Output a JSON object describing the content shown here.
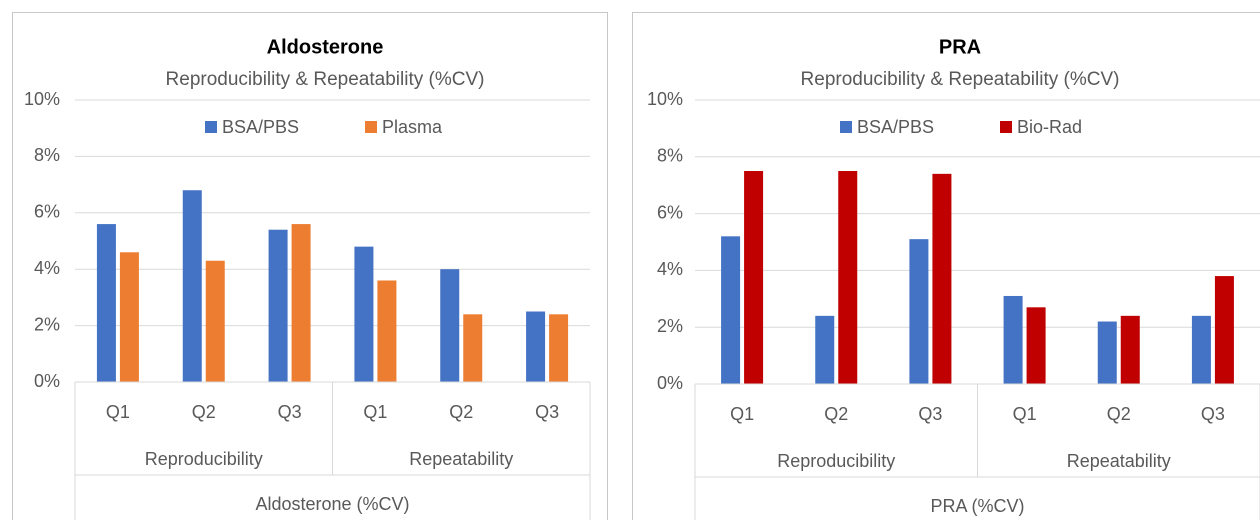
{
  "chart_data": [
    {
      "type": "bar",
      "title": "Aldosterone",
      "subtitle": "Reproducibility & Repeatability (%CV)",
      "categories": [
        "Q1",
        "Q2",
        "Q3",
        "Q1",
        "Q2",
        "Q3"
      ],
      "groups": [
        "Reproducibility",
        "Repeatability"
      ],
      "x_label": "Aldosterone (%CV)",
      "series": [
        {
          "name": "BSA/PBS",
          "color": "#4472c4",
          "values": [
            5.6,
            6.8,
            5.4,
            4.8,
            4.0,
            2.5
          ]
        },
        {
          "name": "Plasma",
          "color": "#ed7d31",
          "values": [
            4.6,
            4.3,
            5.6,
            3.6,
            2.4,
            2.4
          ]
        }
      ],
      "ylim": [
        0,
        10
      ],
      "yticks": [
        {
          "value": 0,
          "label": "0%"
        },
        {
          "value": 2,
          "label": "2%"
        },
        {
          "value": 4,
          "label": "4%"
        },
        {
          "value": 6,
          "label": "6%"
        },
        {
          "value": 8,
          "label": "8%"
        },
        {
          "value": 10,
          "label": "10%"
        }
      ],
      "grid": true,
      "legend": "top"
    },
    {
      "type": "bar",
      "title": "PRA",
      "subtitle": "Reproducibility & Repeatability (%CV)",
      "categories": [
        "Q1",
        "Q2",
        "Q3",
        "Q1",
        "Q2",
        "Q3"
      ],
      "groups": [
        "Reproducibility",
        "Repeatability"
      ],
      "x_label": "PRA (%CV)",
      "series": [
        {
          "name": "BSA/PBS",
          "color": "#4472c4",
          "values": [
            5.2,
            2.4,
            5.1,
            3.1,
            2.2,
            2.4
          ]
        },
        {
          "name": "Bio-Rad",
          "color": "#c00000",
          "values": [
            7.5,
            7.5,
            7.4,
            2.7,
            2.4,
            3.8
          ]
        }
      ],
      "ylim": [
        0,
        10
      ],
      "yticks": [
        {
          "value": 0,
          "label": "0%"
        },
        {
          "value": 2,
          "label": "2%"
        },
        {
          "value": 4,
          "label": "4%"
        },
        {
          "value": 6,
          "label": "6%"
        },
        {
          "value": 8,
          "label": "8%"
        },
        {
          "value": 10,
          "label": "10%"
        }
      ],
      "grid": true,
      "legend": "top"
    }
  ]
}
